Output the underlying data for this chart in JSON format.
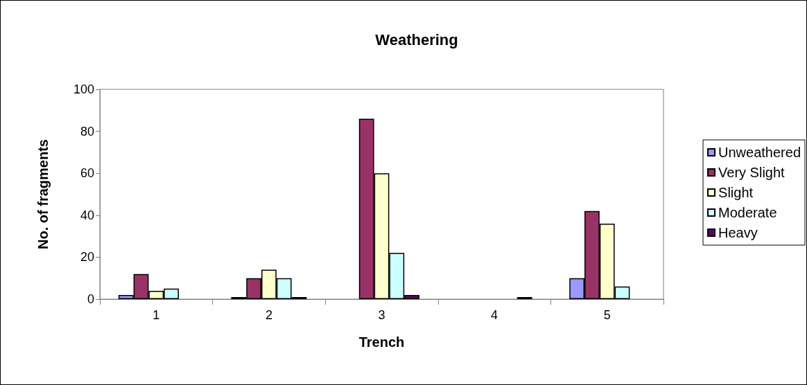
{
  "chart_data": {
    "type": "bar",
    "title": "Weathering",
    "xlabel": "Trench",
    "ylabel": "No. of fragments",
    "categories": [
      "1",
      "2",
      "3",
      "4",
      "5"
    ],
    "series": [
      {
        "name": "Unweathered",
        "color": "#9999ff",
        "values": [
          2,
          1,
          null,
          null,
          10
        ]
      },
      {
        "name": "Very Slight",
        "color": "#993366",
        "values": [
          12,
          10,
          86,
          null,
          42
        ]
      },
      {
        "name": "Slight",
        "color": "#ffffcc",
        "values": [
          4,
          14,
          60,
          null,
          36
        ]
      },
      {
        "name": "Moderate",
        "color": "#ccffff",
        "values": [
          5,
          10,
          22,
          null,
          6
        ]
      },
      {
        "name": "Heavy",
        "color": "#660066",
        "values": [
          null,
          1,
          2,
          1,
          null
        ]
      }
    ],
    "ylim": [
      0,
      100
    ],
    "yticks": [
      0,
      20,
      40,
      60,
      80,
      100
    ],
    "grid": false,
    "legend": "right"
  }
}
